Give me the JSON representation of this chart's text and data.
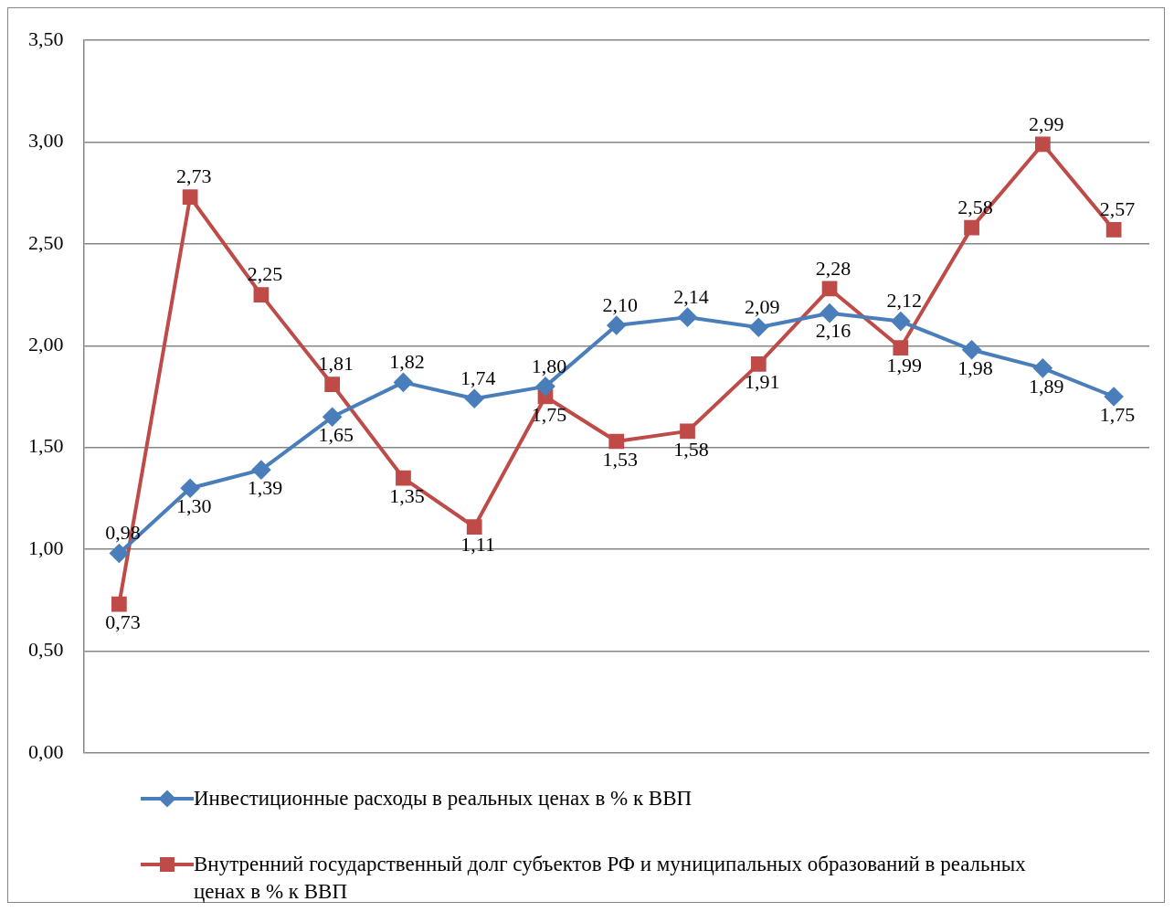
{
  "chart_data": {
    "type": "line",
    "categories": [
      null,
      null,
      null,
      null,
      null,
      null,
      null,
      null,
      null,
      null,
      null,
      null,
      null,
      null,
      null
    ],
    "series": [
      {
        "name": "Инвестиционные расходы  в реальных ценах в % к ВВП",
        "color": "#4a7ebb",
        "marker": "diamond",
        "values": [
          0.98,
          1.3,
          1.39,
          1.65,
          1.82,
          1.74,
          1.8,
          2.1,
          2.14,
          2.09,
          2.16,
          2.12,
          1.98,
          1.89,
          1.75
        ],
        "value_labels": [
          "0,98",
          "1,30",
          "1,39",
          "1,65",
          "1,82",
          "1,74",
          "1,80",
          "2,10",
          "2,14",
          "2,09",
          "2,16",
          "2,12",
          "1,98",
          "1,89",
          "1,75"
        ]
      },
      {
        "name": "Внутренний государственный долг субъектов РФ и муниципальных образований в реальных ценах в % к ВВП",
        "color": "#be4b48",
        "marker": "square",
        "values": [
          0.73,
          2.73,
          2.25,
          1.81,
          1.35,
          1.11,
          1.75,
          1.53,
          1.58,
          1.91,
          2.28,
          1.99,
          2.58,
          2.99,
          2.57
        ],
        "value_labels": [
          "0,73",
          "2,73",
          "2,25",
          "1,81",
          "1,35",
          "1,11",
          "1,75",
          "1,53",
          "1,58",
          "1,91",
          "2,28",
          "1,99",
          "2,58",
          "2,99",
          "2,57"
        ]
      }
    ],
    "ylim": [
      0,
      3.5
    ],
    "yticks": [
      {
        "value": 0,
        "label": "0,00"
      },
      {
        "value": 0.5,
        "label": "0,50"
      },
      {
        "value": 1,
        "label": "1,00"
      },
      {
        "value": 1.5,
        "label": "1,50"
      },
      {
        "value": 2,
        "label": "2,00"
      },
      {
        "value": 2.5,
        "label": "2,50"
      },
      {
        "value": 3,
        "label": "3,00"
      },
      {
        "value": 3.5,
        "label": "3,50"
      }
    ],
    "grid": "y",
    "legend": "bottom"
  }
}
